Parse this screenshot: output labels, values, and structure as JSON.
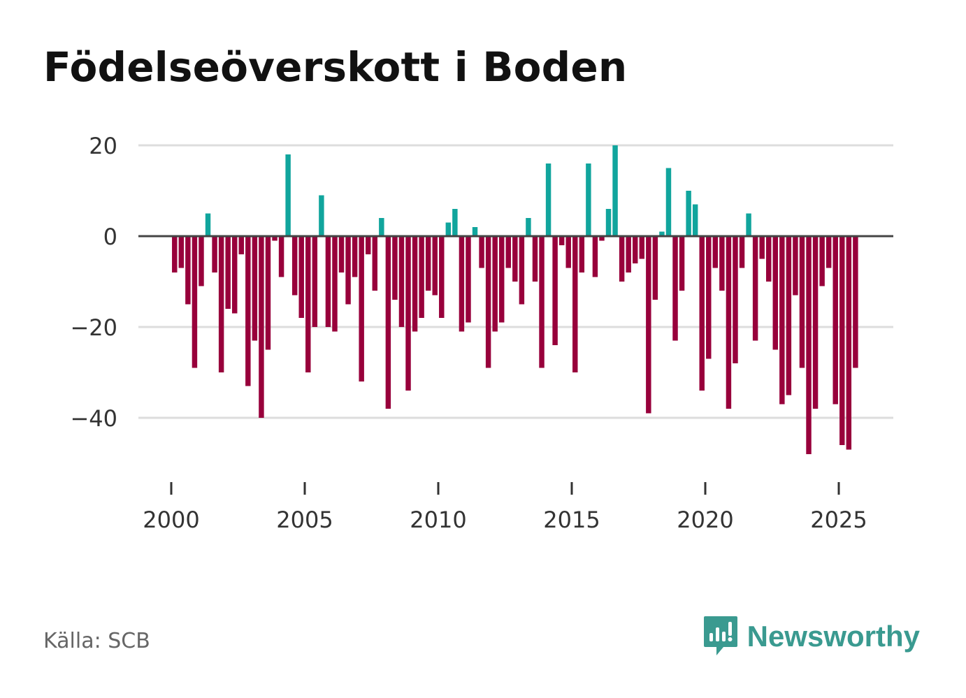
{
  "title": "Födelseöverskott i Boden",
  "source": "Källa: SCB",
  "brand": {
    "name": "Newsworthy",
    "icon": "newsworthy-logo-icon"
  },
  "colors": {
    "positive": "#11a59d",
    "negative": "#98003b",
    "grid": "#dddddd",
    "zero_line": "#444444",
    "brand": "#3a9a90"
  },
  "chart_data": {
    "type": "bar",
    "title": "Födelseöverskott i Boden",
    "xlabel": "",
    "ylabel": "",
    "x_start": 2000,
    "periods_per_year": 4,
    "xlim": [
      1999.1,
      2027.3
    ],
    "ylim": [
      -53,
      26
    ],
    "y_ticks": [
      -40,
      -20,
      0,
      20
    ],
    "y_tick_labels": [
      "−40",
      "−20",
      "0",
      "20"
    ],
    "x_ticks": [
      2000,
      2005,
      2010,
      2015,
      2020,
      2025
    ],
    "x_tick_labels": [
      "2000",
      "2005",
      "2010",
      "2015",
      "2020",
      "2025"
    ],
    "grid": true,
    "values": [
      -8,
      -7,
      -15,
      -29,
      -11,
      5,
      -8,
      -30,
      -16,
      -17,
      -4,
      -33,
      -23,
      -40,
      -25,
      -1,
      -9,
      18,
      -13,
      -18,
      -30,
      -20,
      9,
      -20,
      -21,
      -8,
      -15,
      -9,
      -32,
      -4,
      -12,
      4,
      -38,
      -14,
      -20,
      -34,
      -21,
      -18,
      -12,
      -13,
      -18,
      3,
      6,
      -21,
      -19,
      2,
      -7,
      -29,
      -21,
      -19,
      -7,
      -10,
      -15,
      4,
      -10,
      -29,
      16,
      -24,
      -2,
      -7,
      -30,
      -8,
      16,
      -9,
      -1,
      6,
      20,
      -10,
      -8,
      -6,
      -5,
      -39,
      -14,
      1,
      15,
      -23,
      -12,
      10,
      7,
      -34,
      -27,
      -7,
      -12,
      -38,
      -28,
      -7,
      5,
      -23,
      -5,
      -10,
      -25,
      -37,
      -35,
      -13,
      -29,
      -48,
      -38,
      -11,
      -7,
      -37,
      -46,
      -47,
      -29
    ]
  }
}
